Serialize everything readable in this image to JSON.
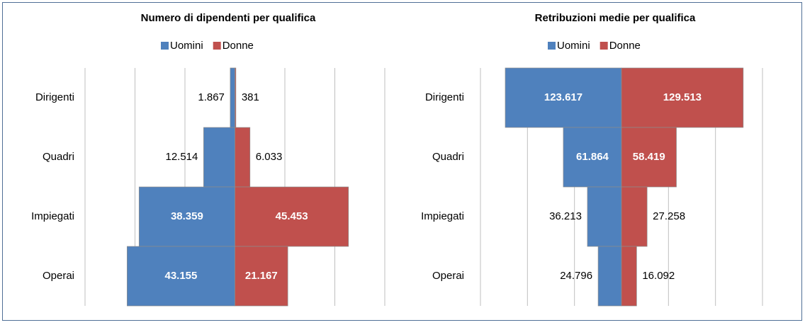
{
  "chart_data": [
    {
      "type": "butterfly",
      "title": "Numero di dipendenti per qualifica",
      "categories": [
        "Dirigenti",
        "Quadri",
        "Impiegati",
        "Operai"
      ],
      "series": [
        {
          "name": "Uomini",
          "color": "#4f81bd",
          "values": [
            1867,
            12514,
            38359,
            43155
          ],
          "value_labels": [
            "1.867",
            "12.514",
            "38.359",
            "43.155"
          ]
        },
        {
          "name": "Donne",
          "color": "#c0504d",
          "values": [
            381,
            6033,
            45453,
            21167
          ],
          "value_labels": [
            "381",
            "6.033",
            "45.453",
            "21.167"
          ]
        }
      ],
      "xlim": [
        -60000,
        60000
      ],
      "xticks": [
        -60000,
        -40000,
        -20000,
        0,
        20000,
        40000,
        60000
      ],
      "grid": true,
      "legend": "top"
    },
    {
      "type": "butterfly",
      "title": "Retribuzioni medie per qualifica",
      "categories": [
        "Dirigenti",
        "Quadri",
        "Impiegati",
        "Operai"
      ],
      "series": [
        {
          "name": "Uomini",
          "color": "#4f81bd",
          "values": [
            123617,
            61864,
            36213,
            24796
          ],
          "value_labels": [
            "123.617",
            "61.864",
            "36.213",
            "24.796"
          ]
        },
        {
          "name": "Donne",
          "color": "#c0504d",
          "values": [
            129513,
            58419,
            27258,
            16092
          ],
          "value_labels": [
            "129.513",
            "58.419",
            "27.258",
            "16.092"
          ]
        }
      ],
      "xlim": [
        -150000,
        150000
      ],
      "xticks": [
        -150000,
        -100000,
        -50000,
        0,
        50000,
        100000,
        150000
      ],
      "grid": true,
      "legend": "top"
    }
  ]
}
